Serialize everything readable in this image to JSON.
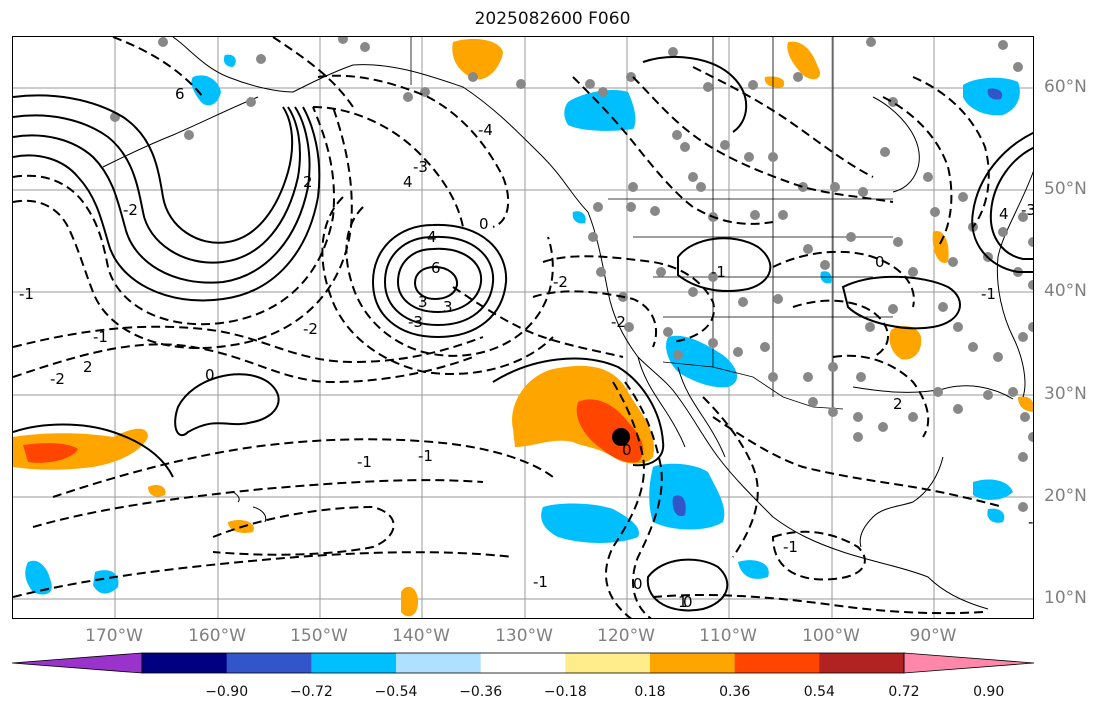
{
  "title": "2025082600 F060",
  "lon_labels": [
    "170°W",
    "160°W",
    "150°W",
    "140°W",
    "130°W",
    "120°W",
    "110°W",
    "100°W",
    "90°W"
  ],
  "lat_labels": [
    "60°N",
    "50°N",
    "40°N",
    "30°N",
    "20°N",
    "10°N"
  ],
  "contour_labels": [
    "6",
    "2",
    "-1",
    "-2",
    "-3",
    "-4",
    "4",
    "6",
    "3",
    "4",
    "3",
    "-3",
    "0",
    "-2",
    "0",
    "-1",
    "2",
    "-2",
    "-1",
    "-1",
    "-1",
    "0",
    "1",
    "-2",
    "0",
    "0",
    "-1",
    "-2",
    "-1",
    "2",
    "-1",
    "-3",
    "4",
    "0",
    "-2"
  ],
  "colorbar": {
    "ticks": [
      "−0.90",
      "−0.72",
      "−0.54",
      "−0.36",
      "−0.18",
      "0.18",
      "0.36",
      "0.54",
      "0.72",
      "0.90"
    ],
    "colors": [
      "#9933cc",
      "#000080",
      "#3355cc",
      "#00bfff",
      "#b0e0ff",
      "#ffffff",
      "#ffec8b",
      "#ffa500",
      "#ff4500",
      "#b22222",
      "#ff88aa"
    ]
  },
  "legend_colors": {
    "neg_strong": "#3355cc",
    "neg_mid": "#00bfff",
    "neg_weak": "#b0e0ff",
    "pos_weak": "#ffa500",
    "pos_mid": "#ff4500",
    "pos_strong": "#b22222",
    "station": "#888888"
  }
}
